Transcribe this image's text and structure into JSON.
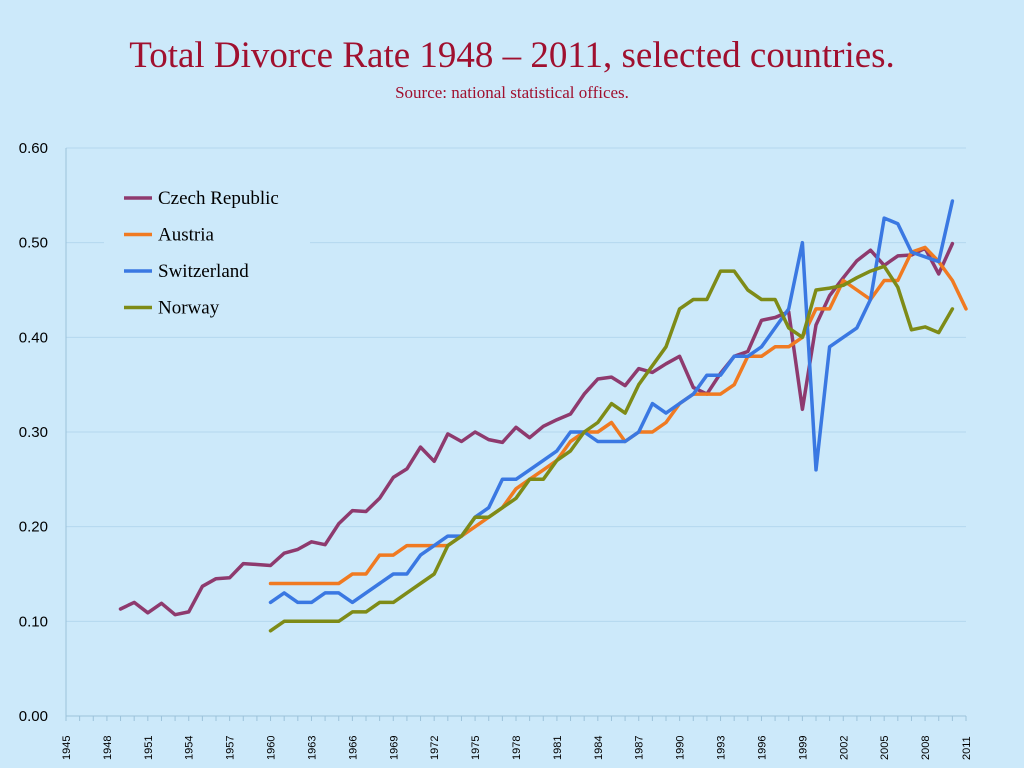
{
  "slide": {
    "title": "Total Divorce Rate 1948 – 2011, selected countries.",
    "subtitle": "Source: national statistical offices."
  },
  "chart_data": {
    "type": "line",
    "title": "Total Divorce Rate 1948 – 2011, selected countries.",
    "subtitle": "Source: national statistical offices.",
    "xlabel": "",
    "ylabel": "",
    "xlim": [
      1945,
      2011
    ],
    "ylim": [
      0,
      0.6
    ],
    "yticks": [
      "0.00",
      "0.10",
      "0.20",
      "0.30",
      "0.40",
      "0.50",
      "0.60"
    ],
    "xticks": [
      "1945",
      "1948",
      "1951",
      "1954",
      "1957",
      "1960",
      "1963",
      "1966",
      "1969",
      "1972",
      "1975",
      "1978",
      "1981",
      "1984",
      "1987",
      "1990",
      "1993",
      "1996",
      "1999",
      "2002",
      "2005",
      "2008",
      "2011"
    ],
    "grid": true,
    "legend_position": "top-left",
    "series": [
      {
        "name": "Czech Republic",
        "color": "#8e3a6e",
        "x": [
          1949,
          1950,
          1951,
          1952,
          1953,
          1954,
          1955,
          1956,
          1957,
          1958,
          1959,
          1960,
          1961,
          1962,
          1963,
          1964,
          1965,
          1966,
          1967,
          1968,
          1969,
          1970,
          1971,
          1972,
          1973,
          1974,
          1975,
          1976,
          1977,
          1978,
          1979,
          1980,
          1981,
          1982,
          1983,
          1984,
          1985,
          1986,
          1987,
          1988,
          1989,
          1990,
          1991,
          1992,
          1993,
          1994,
          1995,
          1996,
          1997,
          1998,
          1999,
          2000,
          2001,
          2002,
          2003,
          2004,
          2005,
          2006,
          2007,
          2008,
          2009,
          2010
        ],
        "y": [
          0.113,
          0.12,
          0.109,
          0.119,
          0.107,
          0.11,
          0.137,
          0.145,
          0.146,
          0.161,
          0.16,
          0.159,
          0.172,
          0.176,
          0.184,
          0.181,
          0.203,
          0.217,
          0.216,
          0.23,
          0.252,
          0.261,
          0.284,
          0.269,
          0.298,
          0.29,
          0.3,
          0.292,
          0.289,
          0.305,
          0.294,
          0.306,
          0.313,
          0.319,
          0.34,
          0.356,
          0.358,
          0.349,
          0.367,
          0.363,
          0.372,
          0.38,
          0.347,
          0.34,
          0.362,
          0.38,
          0.385,
          0.418,
          0.421,
          0.427,
          0.324,
          0.413,
          0.444,
          0.463,
          0.481,
          0.492,
          0.476,
          0.486,
          0.487,
          0.494,
          0.467,
          0.499
        ]
      },
      {
        "name": "Austria",
        "color": "#f07a21",
        "x": [
          1960,
          1961,
          1962,
          1963,
          1964,
          1965,
          1966,
          1967,
          1968,
          1969,
          1970,
          1971,
          1972,
          1973,
          1974,
          1975,
          1976,
          1977,
          1978,
          1979,
          1980,
          1981,
          1982,
          1983,
          1984,
          1985,
          1986,
          1987,
          1988,
          1989,
          1990,
          1991,
          1992,
          1993,
          1994,
          1995,
          1996,
          1997,
          1998,
          1999,
          2000,
          2001,
          2002,
          2003,
          2004,
          2005,
          2006,
          2007,
          2008,
          2009,
          2010,
          2011
        ],
        "y": [
          0.14,
          0.14,
          0.14,
          0.14,
          0.14,
          0.14,
          0.15,
          0.15,
          0.17,
          0.17,
          0.18,
          0.18,
          0.18,
          0.18,
          0.19,
          0.2,
          0.21,
          0.22,
          0.24,
          0.25,
          0.26,
          0.27,
          0.29,
          0.3,
          0.3,
          0.31,
          0.29,
          0.3,
          0.3,
          0.31,
          0.33,
          0.34,
          0.34,
          0.34,
          0.35,
          0.38,
          0.38,
          0.39,
          0.39,
          0.4,
          0.43,
          0.43,
          0.46,
          0.45,
          0.44,
          0.46,
          0.46,
          0.49,
          0.495,
          0.48,
          0.46,
          0.43
        ]
      },
      {
        "name": "Switzerland",
        "color": "#3a78e2",
        "x": [
          1960,
          1961,
          1962,
          1963,
          1964,
          1965,
          1966,
          1967,
          1968,
          1969,
          1970,
          1971,
          1972,
          1973,
          1974,
          1975,
          1976,
          1977,
          1978,
          1979,
          1980,
          1981,
          1982,
          1983,
          1984,
          1985,
          1986,
          1987,
          1988,
          1989,
          1990,
          1991,
          1992,
          1993,
          1994,
          1995,
          1996,
          1997,
          1998,
          1999,
          2000,
          2001,
          2002,
          2003,
          2004,
          2005,
          2006,
          2007,
          2008,
          2009,
          2010
        ],
        "y": [
          0.12,
          0.13,
          0.12,
          0.12,
          0.13,
          0.13,
          0.12,
          0.13,
          0.14,
          0.15,
          0.15,
          0.17,
          0.18,
          0.19,
          0.19,
          0.21,
          0.22,
          0.25,
          0.25,
          0.26,
          0.27,
          0.28,
          0.3,
          0.3,
          0.29,
          0.29,
          0.29,
          0.3,
          0.33,
          0.32,
          0.33,
          0.34,
          0.36,
          0.36,
          0.38,
          0.38,
          0.39,
          0.41,
          0.43,
          0.5,
          0.26,
          0.39,
          0.4,
          0.41,
          0.44,
          0.526,
          0.52,
          0.49,
          0.485,
          0.48,
          0.544
        ]
      },
      {
        "name": "Norway",
        "color": "#7e8b17",
        "x": [
          1960,
          1961,
          1962,
          1963,
          1964,
          1965,
          1966,
          1967,
          1968,
          1969,
          1970,
          1971,
          1972,
          1973,
          1974,
          1975,
          1976,
          1977,
          1978,
          1979,
          1980,
          1981,
          1982,
          1983,
          1984,
          1985,
          1986,
          1987,
          1988,
          1989,
          1990,
          1991,
          1992,
          1993,
          1994,
          1995,
          1996,
          1997,
          1998,
          1999,
          2000,
          2001,
          2002,
          2003,
          2004,
          2005,
          2006,
          2007,
          2008,
          2009,
          2010
        ],
        "y": [
          0.09,
          0.1,
          0.1,
          0.1,
          0.1,
          0.1,
          0.11,
          0.11,
          0.12,
          0.12,
          0.13,
          0.14,
          0.15,
          0.18,
          0.19,
          0.21,
          0.21,
          0.22,
          0.23,
          0.25,
          0.25,
          0.27,
          0.28,
          0.3,
          0.31,
          0.33,
          0.32,
          0.35,
          0.37,
          0.39,
          0.43,
          0.44,
          0.44,
          0.47,
          0.47,
          0.45,
          0.44,
          0.44,
          0.41,
          0.4,
          0.45,
          0.452,
          0.455,
          0.463,
          0.47,
          0.475,
          0.453,
          0.408,
          0.411,
          0.405,
          0.43
        ]
      }
    ]
  }
}
